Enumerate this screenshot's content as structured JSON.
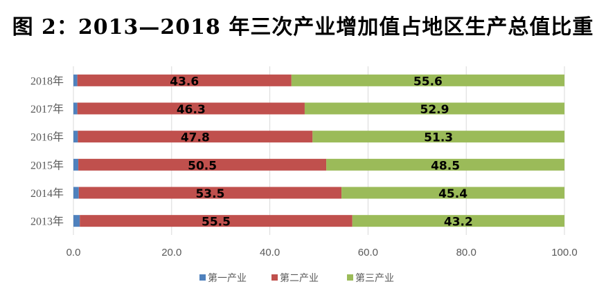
{
  "chart_data": {
    "type": "bar",
    "orientation": "horizontal",
    "stacked": true,
    "title": "图 2：2013—2018 年三次产业增加值占地区生产总值比重",
    "categories": [
      "2013年",
      "2014年",
      "2015年",
      "2016年",
      "2017年",
      "2018年"
    ],
    "series": [
      {
        "name": "第一产业",
        "color": "#4f81bd",
        "values": [
          1.3,
          1.1,
          1.0,
          0.9,
          0.8,
          0.8
        ]
      },
      {
        "name": "第二产业",
        "color": "#c0504d",
        "values": [
          55.5,
          53.5,
          50.5,
          47.8,
          46.3,
          43.6
        ]
      },
      {
        "name": "第三产业",
        "color": "#9bbb59",
        "values": [
          43.2,
          45.4,
          48.5,
          51.3,
          52.9,
          55.6
        ]
      }
    ],
    "xlim": [
      0,
      100
    ],
    "xticks": [
      "0.0",
      "20.0",
      "40.0",
      "60.0",
      "80.0",
      "100.0"
    ],
    "grid": true,
    "legend": "bottom",
    "data_labels": true
  }
}
